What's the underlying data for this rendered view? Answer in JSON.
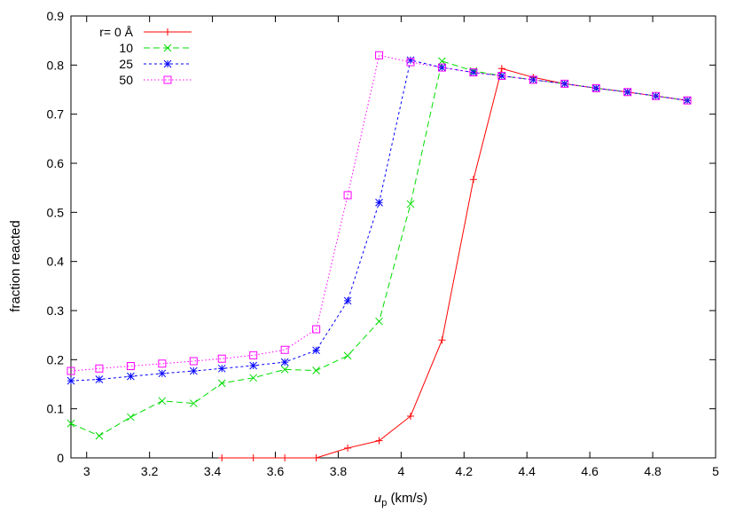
{
  "chart_data": {
    "type": "line",
    "xlabel_main": "u",
    "xlabel_sub": "p",
    "xlabel_unit": " (km/s)",
    "ylabel": "fraction reacted",
    "xlim": [
      2.95,
      5.0
    ],
    "ylim": [
      0,
      0.9
    ],
    "xticks": [
      3,
      3.2,
      3.4,
      3.6,
      3.8,
      4,
      4.2,
      4.4,
      4.6,
      4.8,
      5
    ],
    "xtick_labels": [
      "3",
      "3.2",
      "3.4",
      "3.6",
      "3.8",
      "4",
      "4.2",
      "4.4",
      "4.6",
      "4.8",
      "5"
    ],
    "yticks": [
      0,
      0.1,
      0.2,
      0.3,
      0.4,
      0.5,
      0.6,
      0.7,
      0.8,
      0.9
    ],
    "ytick_labels": [
      "0",
      "0.1",
      "0.2",
      "0.3",
      "0.4",
      "0.5",
      "0.6",
      "0.7",
      "0.8",
      "0.9"
    ],
    "grid": false,
    "legend_position": "top-left",
    "series": [
      {
        "name": "r=  0 Å",
        "color": "#ff0000",
        "marker": "plus",
        "dash": "",
        "x": [
          3.43,
          3.53,
          3.63,
          3.73,
          3.83,
          3.93,
          4.03,
          4.13,
          4.23,
          4.32,
          4.42,
          4.52,
          4.62,
          4.72,
          4.81,
          4.91
        ],
        "y": [
          0.0,
          0.0,
          0.0,
          0.0,
          0.02,
          0.035,
          0.085,
          0.24,
          0.567,
          0.793,
          0.775,
          0.762,
          0.753,
          0.745,
          0.737,
          0.728
        ]
      },
      {
        "name": "10",
        "color": "#00dd00",
        "marker": "x",
        "dash": "7,4",
        "x": [
          2.95,
          3.04,
          3.14,
          3.24,
          3.34,
          3.43,
          3.53,
          3.63,
          3.73,
          3.83,
          3.93,
          4.03,
          4.13,
          4.23,
          4.32,
          4.42,
          4.52,
          4.62,
          4.72,
          4.81,
          4.91
        ],
        "y": [
          0.07,
          0.045,
          0.083,
          0.116,
          0.111,
          0.152,
          0.163,
          0.18,
          0.178,
          0.208,
          0.278,
          0.517,
          0.808,
          0.788,
          0.778,
          0.77,
          0.762,
          0.753,
          0.745,
          0.737,
          0.728
        ]
      },
      {
        "name": "25",
        "color": "#0000ff",
        "marker": "star",
        "dash": "3,3",
        "x": [
          2.95,
          3.04,
          3.14,
          3.24,
          3.34,
          3.43,
          3.53,
          3.63,
          3.73,
          3.83,
          3.93,
          4.03,
          4.13,
          4.23,
          4.32,
          4.42,
          4.52,
          4.62,
          4.72,
          4.81,
          4.91
        ],
        "y": [
          0.157,
          0.16,
          0.166,
          0.172,
          0.177,
          0.182,
          0.188,
          0.195,
          0.219,
          0.32,
          0.52,
          0.81,
          0.795,
          0.785,
          0.778,
          0.77,
          0.762,
          0.753,
          0.745,
          0.737,
          0.728
        ]
      },
      {
        "name": "50",
        "color": "#ff00ff",
        "marker": "square",
        "dash": "1.5,2.5",
        "x": [
          2.95,
          3.04,
          3.14,
          3.24,
          3.34,
          3.43,
          3.53,
          3.63,
          3.73,
          3.83,
          3.93,
          4.03,
          4.13,
          4.23,
          4.32,
          4.42,
          4.52,
          4.62,
          4.72,
          4.81,
          4.91
        ],
        "y": [
          0.177,
          0.182,
          0.187,
          0.192,
          0.197,
          0.202,
          0.209,
          0.22,
          0.262,
          0.535,
          0.82,
          0.806,
          0.795,
          0.785,
          0.778,
          0.77,
          0.762,
          0.753,
          0.745,
          0.737,
          0.728
        ]
      }
    ]
  }
}
